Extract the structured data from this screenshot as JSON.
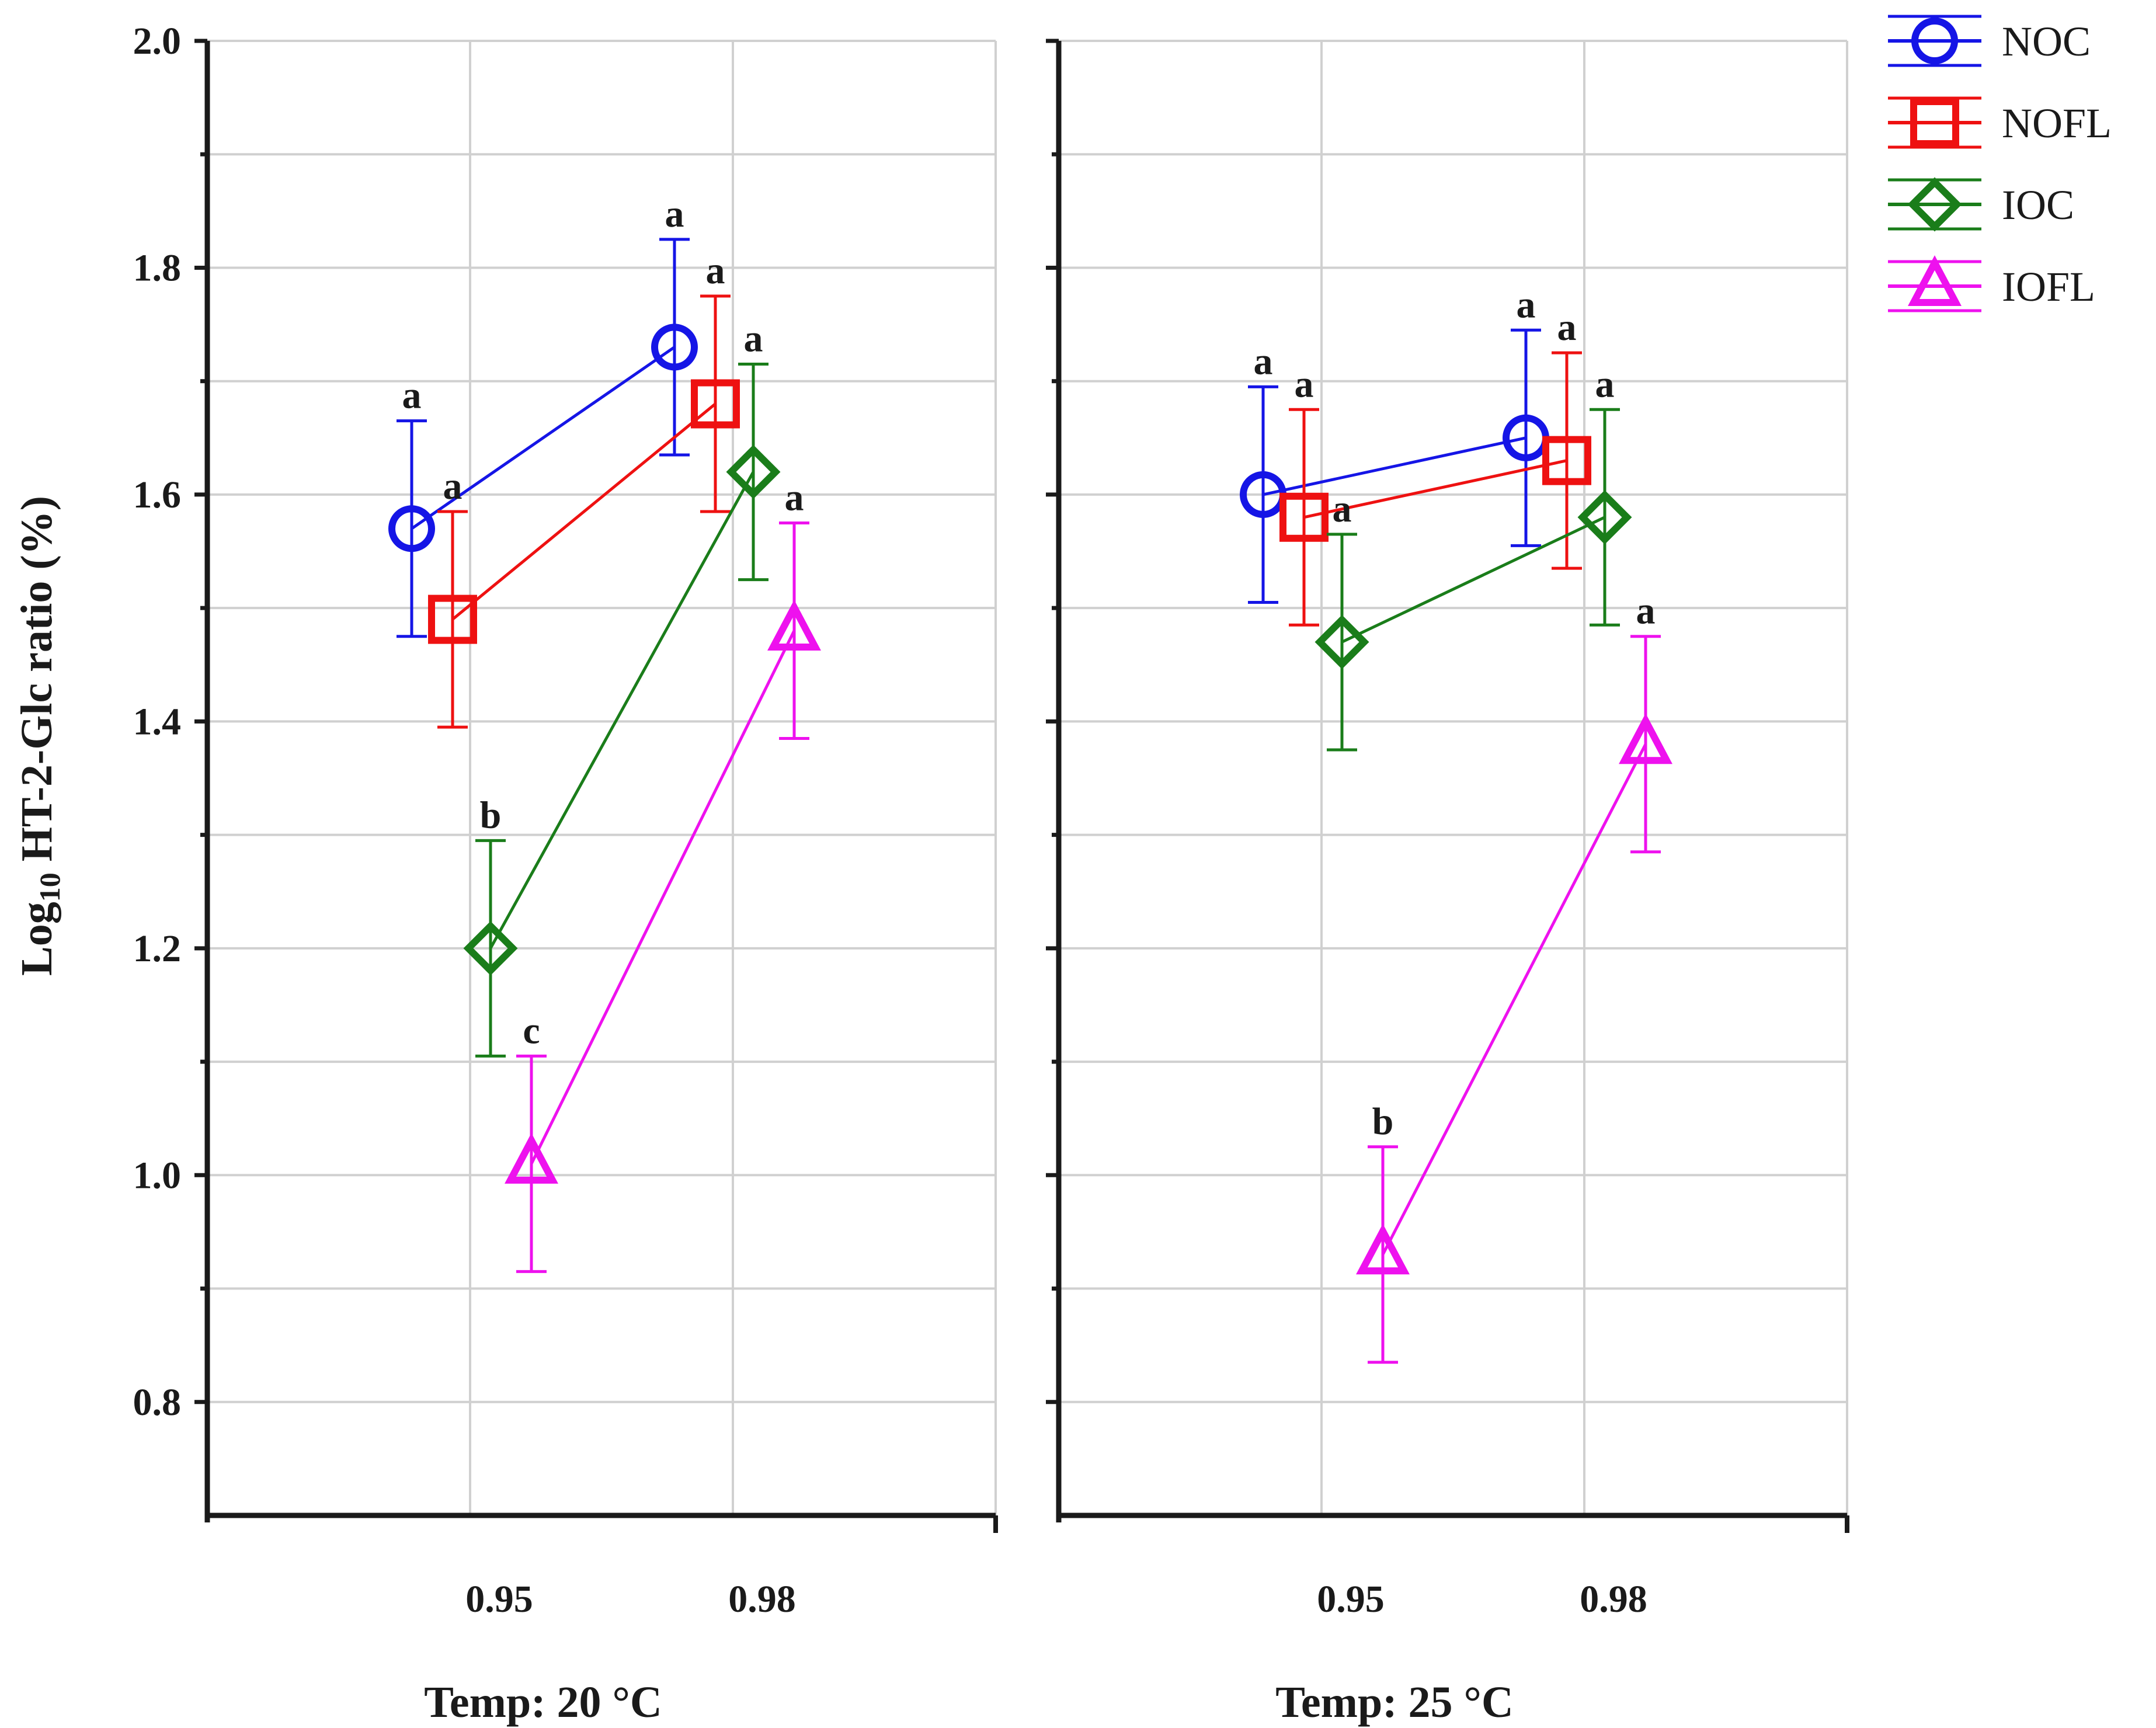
{
  "chart_data": {
    "type": "line",
    "ylabel_prefix": "Log",
    "ylabel_sub": "10",
    "ylabel_rest": " HT-2-Glc ratio (%)",
    "ylim": [
      0.7,
      2.0
    ],
    "yticks": [
      "0.8",
      "1.0",
      "1.2",
      "1.4",
      "1.6",
      "1.8",
      "2.0"
    ],
    "ytick_values": [
      0.8,
      1.0,
      1.2,
      1.4,
      1.6,
      1.8,
      2.0
    ],
    "categories": [
      "0.95",
      "0.98"
    ],
    "legend": [
      {
        "name": "NOC",
        "color": "#1515e6",
        "marker": "circle"
      },
      {
        "name": "NOFL",
        "color": "#ee1111",
        "marker": "square"
      },
      {
        "name": "IOC",
        "color": "#1a7d1a",
        "marker": "diamond"
      },
      {
        "name": "IOFL",
        "color": "#ee11ee",
        "marker": "triangle"
      }
    ],
    "panels": [
      {
        "xlabel": "Temp: 20 °C",
        "series": [
          {
            "name": "NOC",
            "values": [
              1.57,
              1.73
            ],
            "err": [
              0.095,
              0.095
            ],
            "letters": [
              "a",
              "a"
            ]
          },
          {
            "name": "NOFL",
            "values": [
              1.49,
              1.68
            ],
            "err": [
              0.095,
              0.095
            ],
            "letters": [
              "a",
              "a"
            ]
          },
          {
            "name": "IOC",
            "values": [
              1.2,
              1.62
            ],
            "err": [
              0.095,
              0.095
            ],
            "letters": [
              "b",
              "a"
            ]
          },
          {
            "name": "IOFL",
            "values": [
              1.01,
              1.48
            ],
            "err": [
              0.095,
              0.095
            ],
            "letters": [
              "c",
              "a"
            ]
          }
        ]
      },
      {
        "xlabel": "Temp: 25 °C",
        "series": [
          {
            "name": "NOC",
            "values": [
              1.6,
              1.65
            ],
            "err": [
              0.095,
              0.095
            ],
            "letters": [
              "a",
              "a"
            ]
          },
          {
            "name": "NOFL",
            "values": [
              1.58,
              1.63
            ],
            "err": [
              0.095,
              0.095
            ],
            "letters": [
              "a",
              "a"
            ]
          },
          {
            "name": "IOC",
            "values": [
              1.47,
              1.58
            ],
            "err": [
              0.095,
              0.095
            ],
            "letters": [
              "a",
              "a"
            ]
          },
          {
            "name": "IOFL",
            "values": [
              0.93,
              1.38
            ],
            "err": [
              0.095,
              0.095
            ],
            "letters": [
              "b",
              "a"
            ]
          }
        ]
      }
    ]
  }
}
